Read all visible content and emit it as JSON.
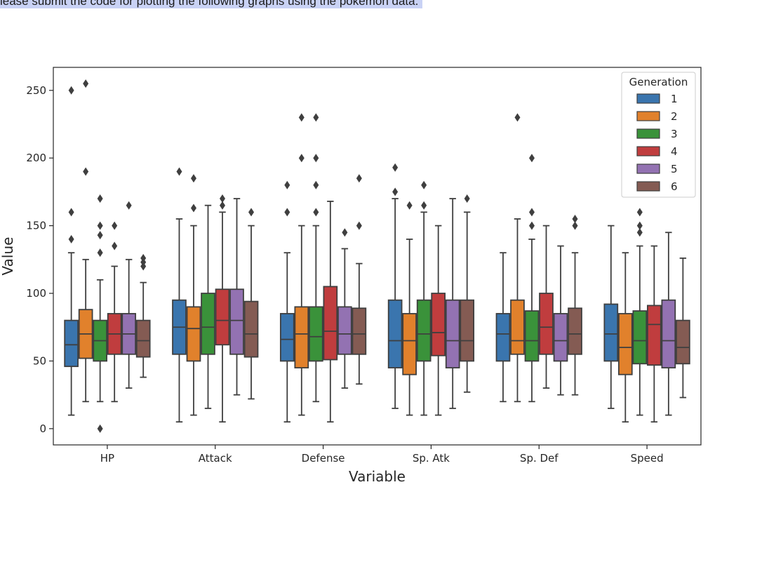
{
  "document": {
    "header_text": "lease submit the code for plotting the following graphs using the pokemon data.",
    "highlight_color": "#c9d2f5"
  },
  "chart_data": {
    "type": "boxplot",
    "xlabel": "Variable",
    "ylabel": "Value",
    "categories": [
      "HP",
      "Attack",
      "Defense",
      "Sp. Atk",
      "Sp. Def",
      "Speed"
    ],
    "ylim": [
      -12,
      267
    ],
    "yticks": [
      0,
      50,
      100,
      150,
      200,
      250
    ],
    "grid": false,
    "legend": {
      "title": "Generation",
      "position": "top-right"
    },
    "series": [
      {
        "name": "1",
        "color": "#3a75ae",
        "boxes": [
          {
            "min": 10,
            "q1": 46,
            "median": 62,
            "q3": 80,
            "max": 130,
            "outliers": [
              140,
              160,
              250
            ]
          },
          {
            "min": 5,
            "q1": 55,
            "median": 75,
            "q3": 95,
            "max": 155,
            "outliers": [
              190
            ]
          },
          {
            "min": 5,
            "q1": 50,
            "median": 66,
            "q3": 85,
            "max": 130,
            "outliers": [
              160,
              180
            ]
          },
          {
            "min": 15,
            "q1": 45,
            "median": 65,
            "q3": 95,
            "max": 170,
            "outliers": [
              175,
              193
            ]
          },
          {
            "min": 20,
            "q1": 50,
            "median": 70,
            "q3": 85,
            "max": 130,
            "outliers": []
          },
          {
            "min": 15,
            "q1": 50,
            "median": 70,
            "q3": 92,
            "max": 150,
            "outliers": []
          }
        ]
      },
      {
        "name": "2",
        "color": "#e1812c",
        "boxes": [
          {
            "min": 20,
            "q1": 52,
            "median": 70,
            "q3": 88,
            "max": 125,
            "outliers": [
              190,
              255
            ]
          },
          {
            "min": 10,
            "q1": 50,
            "median": 74,
            "q3": 90,
            "max": 150,
            "outliers": [
              163,
              185
            ]
          },
          {
            "min": 10,
            "q1": 45,
            "median": 70,
            "q3": 90,
            "max": 150,
            "outliers": [
              200,
              230
            ]
          },
          {
            "min": 10,
            "q1": 40,
            "median": 65,
            "q3": 85,
            "max": 140,
            "outliers": [
              165
            ]
          },
          {
            "min": 20,
            "q1": 55,
            "median": 65,
            "q3": 95,
            "max": 155,
            "outliers": [
              230
            ]
          },
          {
            "min": 5,
            "q1": 40,
            "median": 60,
            "q3": 85,
            "max": 130,
            "outliers": []
          }
        ]
      },
      {
        "name": "3",
        "color": "#3a923a",
        "boxes": [
          {
            "min": 20,
            "q1": 50,
            "median": 65,
            "q3": 80,
            "max": 110,
            "outliers": [
              0,
              130,
              143,
              150,
              170
            ]
          },
          {
            "min": 15,
            "q1": 55,
            "median": 75,
            "q3": 100,
            "max": 165,
            "outliers": []
          },
          {
            "min": 20,
            "q1": 50,
            "median": 68,
            "q3": 90,
            "max": 150,
            "outliers": [
              160,
              180,
              200,
              230
            ]
          },
          {
            "min": 10,
            "q1": 50,
            "median": 70,
            "q3": 95,
            "max": 160,
            "outliers": [
              165,
              180
            ]
          },
          {
            "min": 20,
            "q1": 50,
            "median": 65,
            "q3": 87,
            "max": 140,
            "outliers": [
              150,
              160,
              200
            ]
          },
          {
            "min": 10,
            "q1": 48,
            "median": 65,
            "q3": 87,
            "max": 135,
            "outliers": [
              145,
              150,
              160
            ]
          }
        ]
      },
      {
        "name": "4",
        "color": "#c03d3e",
        "boxes": [
          {
            "min": 20,
            "q1": 55,
            "median": 70,
            "q3": 85,
            "max": 120,
            "outliers": [
              135,
              150
            ]
          },
          {
            "min": 5,
            "q1": 62,
            "median": 80,
            "q3": 103,
            "max": 160,
            "outliers": [
              165,
              170
            ]
          },
          {
            "min": 5,
            "q1": 51,
            "median": 72,
            "q3": 105,
            "max": 168,
            "outliers": []
          },
          {
            "min": 10,
            "q1": 54,
            "median": 71,
            "q3": 100,
            "max": 150,
            "outliers": []
          },
          {
            "min": 30,
            "q1": 55,
            "median": 75,
            "q3": 100,
            "max": 150,
            "outliers": []
          },
          {
            "min": 5,
            "q1": 47,
            "median": 77,
            "q3": 91,
            "max": 135,
            "outliers": []
          }
        ]
      },
      {
        "name": "5",
        "color": "#9372b2",
        "boxes": [
          {
            "min": 30,
            "q1": 55,
            "median": 70,
            "q3": 85,
            "max": 125,
            "outliers": [
              165
            ]
          },
          {
            "min": 25,
            "q1": 55,
            "median": 80,
            "q3": 103,
            "max": 170,
            "outliers": []
          },
          {
            "min": 30,
            "q1": 55,
            "median": 70,
            "q3": 90,
            "max": 133,
            "outliers": [
              145
            ]
          },
          {
            "min": 15,
            "q1": 45,
            "median": 65,
            "q3": 95,
            "max": 170,
            "outliers": []
          },
          {
            "min": 25,
            "q1": 50,
            "median": 65,
            "q3": 85,
            "max": 135,
            "outliers": []
          },
          {
            "min": 10,
            "q1": 45,
            "median": 65,
            "q3": 95,
            "max": 145,
            "outliers": []
          }
        ]
      },
      {
        "name": "6",
        "color": "#845b53",
        "boxes": [
          {
            "min": 38,
            "q1": 53,
            "median": 65,
            "q3": 80,
            "max": 108,
            "outliers": [
              120,
              123,
              126
            ]
          },
          {
            "min": 22,
            "q1": 53,
            "median": 70,
            "q3": 94,
            "max": 150,
            "outliers": [
              160
            ]
          },
          {
            "min": 33,
            "q1": 55,
            "median": 70,
            "q3": 89,
            "max": 122,
            "outliers": [
              150,
              185
            ]
          },
          {
            "min": 27,
            "q1": 50,
            "median": 65,
            "q3": 95,
            "max": 160,
            "outliers": [
              170
            ]
          },
          {
            "min": 25,
            "q1": 55,
            "median": 70,
            "q3": 89,
            "max": 130,
            "outliers": [
              150,
              155
            ]
          },
          {
            "min": 23,
            "q1": 48,
            "median": 60,
            "q3": 80,
            "max": 126,
            "outliers": []
          }
        ]
      }
    ]
  }
}
